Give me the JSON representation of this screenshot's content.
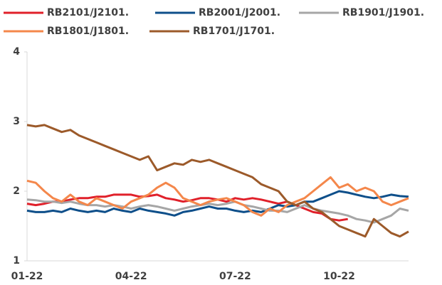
{
  "chart_data": {
    "type": "line",
    "categories": [
      "01-22",
      null,
      null,
      null,
      null,
      null,
      null,
      null,
      null,
      null,
      null,
      null,
      "04-22",
      null,
      null,
      null,
      null,
      null,
      null,
      null,
      null,
      null,
      null,
      null,
      "07-22",
      null,
      null,
      null,
      null,
      null,
      null,
      null,
      null,
      null,
      null,
      null,
      "10-22",
      null,
      null,
      null,
      null,
      null,
      null,
      null,
      null
    ],
    "series": [
      {
        "name": "RB2101/J2101.",
        "color": "#e0202a",
        "values": [
          1.82,
          1.8,
          1.82,
          1.85,
          1.85,
          1.88,
          1.9,
          1.9,
          1.92,
          1.92,
          1.95,
          1.95,
          1.95,
          1.92,
          1.93,
          1.95,
          1.9,
          1.88,
          1.85,
          1.87,
          1.9,
          1.9,
          1.88,
          1.85,
          1.9,
          1.88,
          1.9,
          1.88,
          1.85,
          1.82,
          1.85,
          1.8,
          1.75,
          1.7,
          1.68,
          1.6,
          1.58,
          1.6,
          null,
          null,
          null,
          null,
          null,
          null,
          null
        ]
      },
      {
        "name": "RB2001/J2001.",
        "color": "#0e4f8a",
        "values": [
          1.72,
          1.7,
          1.7,
          1.72,
          1.7,
          1.75,
          1.72,
          1.7,
          1.72,
          1.7,
          1.75,
          1.72,
          1.7,
          1.75,
          1.72,
          1.7,
          1.68,
          1.65,
          1.7,
          1.72,
          1.75,
          1.78,
          1.75,
          1.75,
          1.72,
          1.7,
          1.72,
          1.7,
          1.75,
          1.8,
          1.78,
          1.8,
          1.85,
          1.85,
          1.9,
          1.95,
          2.0,
          1.98,
          1.95,
          1.92,
          1.9,
          1.92,
          1.95,
          1.93,
          1.92
        ]
      },
      {
        "name": "RB1901/J1901.",
        "color": "#a6a6a6",
        "values": [
          1.88,
          1.87,
          1.85,
          1.85,
          1.83,
          1.85,
          1.82,
          1.8,
          1.8,
          1.78,
          1.8,
          1.78,
          1.75,
          1.78,
          1.8,
          1.78,
          1.75,
          1.72,
          1.75,
          1.78,
          1.8,
          1.82,
          1.8,
          1.82,
          1.85,
          1.8,
          1.78,
          1.75,
          1.72,
          1.72,
          1.7,
          1.75,
          1.8,
          1.75,
          1.72,
          1.7,
          1.68,
          1.65,
          1.6,
          1.58,
          1.55,
          1.6,
          1.65,
          1.75,
          1.72
        ]
      },
      {
        "name": "RB1801/J1801.",
        "color": "#f4874b",
        "values": [
          2.15,
          2.12,
          2.0,
          1.9,
          1.85,
          1.95,
          1.85,
          1.8,
          1.9,
          1.85,
          1.8,
          1.75,
          1.85,
          1.9,
          1.95,
          2.05,
          2.12,
          2.05,
          1.9,
          1.85,
          1.8,
          1.85,
          1.88,
          1.9,
          1.85,
          1.8,
          1.7,
          1.65,
          1.75,
          1.7,
          1.8,
          1.85,
          1.9,
          2.0,
          2.1,
          2.2,
          2.05,
          2.1,
          2.0,
          2.05,
          2.0,
          1.85,
          1.8,
          1.85,
          1.9
        ]
      },
      {
        "name": "RB1701/J1701.",
        "color": "#9c5a2a",
        "values": [
          2.95,
          2.93,
          2.95,
          2.9,
          2.85,
          2.88,
          2.8,
          2.75,
          2.7,
          2.65,
          2.6,
          2.55,
          2.5,
          2.45,
          2.5,
          2.3,
          2.35,
          2.4,
          2.38,
          2.45,
          2.42,
          2.45,
          2.4,
          2.35,
          2.3,
          2.25,
          2.2,
          2.1,
          2.05,
          2.0,
          1.85,
          1.8,
          1.85,
          1.75,
          1.7,
          1.6,
          1.5,
          1.45,
          1.4,
          1.35,
          1.6,
          1.5,
          1.4,
          1.35,
          1.42
        ]
      }
    ],
    "ylim": [
      1,
      4
    ],
    "yticks": [
      1,
      2,
      3,
      4
    ]
  }
}
